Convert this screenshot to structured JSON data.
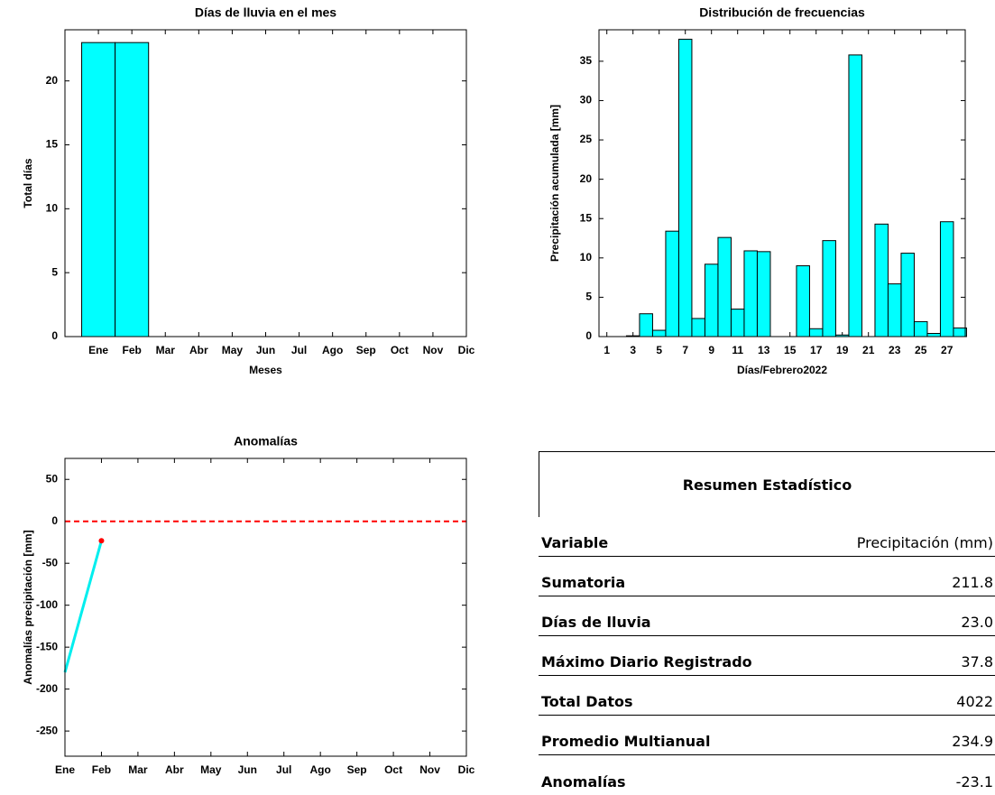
{
  "chart_data": [
    {
      "type": "bar",
      "title": "Días de lluvia en el mes",
      "xlabel": "Meses",
      "ylabel": "Total días",
      "categories": [
        "Ene",
        "Feb",
        "Mar",
        "Abr",
        "May",
        "Jun",
        "Jul",
        "Ago",
        "Sep",
        "Oct",
        "Nov",
        "Dic"
      ],
      "values": [
        23,
        23,
        null,
        null,
        null,
        null,
        null,
        null,
        null,
        null,
        null,
        null
      ],
      "color": "#00ffff",
      "ylim": [
        0,
        24
      ],
      "yticks": [
        0,
        5,
        10,
        15,
        20
      ]
    },
    {
      "type": "histbar",
      "title": "Distribución de frecuencias",
      "xlabel": "Días/Febrero2022",
      "ylabel": "Precipitación acumulada [mm]",
      "x": [
        1,
        2,
        3,
        4,
        5,
        6,
        7,
        8,
        9,
        10,
        11,
        12,
        13,
        14,
        15,
        16,
        17,
        18,
        19,
        20,
        21,
        22,
        23,
        24,
        25,
        26,
        27,
        28
      ],
      "values": [
        0,
        0,
        0.1,
        2.9,
        0.8,
        13.4,
        37.8,
        2.3,
        9.2,
        12.6,
        3.5,
        10.9,
        10.8,
        0,
        0,
        9.0,
        1.0,
        12.2,
        0.2,
        35.8,
        0,
        14.3,
        6.7,
        10.6,
        1.9,
        0.4,
        14.6,
        1.1
      ],
      "color": "#00ffff",
      "xlim": [
        0.4,
        28.4
      ],
      "xticks": [
        1,
        3,
        5,
        7,
        9,
        11,
        13,
        15,
        17,
        19,
        21,
        23,
        25,
        27
      ],
      "ylim": [
        0,
        39
      ],
      "yticks": [
        0,
        5,
        10,
        15,
        20,
        25,
        30,
        35
      ]
    },
    {
      "type": "line",
      "title": "Anomalías",
      "ylabel": "Anomalías precipitación [mm]",
      "categories": [
        "Ene",
        "Feb",
        "Mar",
        "Abr",
        "May",
        "Jun",
        "Jul",
        "Ago",
        "Sep",
        "Oct",
        "Nov",
        "Dic"
      ],
      "values": [
        -180,
        -23.1,
        null,
        null,
        null,
        null,
        null,
        null,
        null,
        null,
        null,
        null
      ],
      "color": "#00eeee",
      "marker_color": "#ff0000",
      "reference_line": {
        "value": 0,
        "color": "#ff0000"
      },
      "ylim": [
        -280,
        75
      ],
      "yticks": [
        -250,
        -200,
        -150,
        -100,
        -50,
        0,
        50
      ]
    }
  ],
  "table": {
    "title": "Resumen Estadístico",
    "header": [
      "Variable",
      "Precipitación (mm)"
    ],
    "rows": [
      [
        "Sumatoria",
        "211.8"
      ],
      [
        "Días de lluvia",
        "23.0"
      ],
      [
        "Máximo Diario Registrado",
        "37.8"
      ],
      [
        "Total Datos",
        "4022"
      ],
      [
        "Promedio Multianual",
        "234.9"
      ],
      [
        "Anomalías",
        "-23.1"
      ]
    ]
  }
}
